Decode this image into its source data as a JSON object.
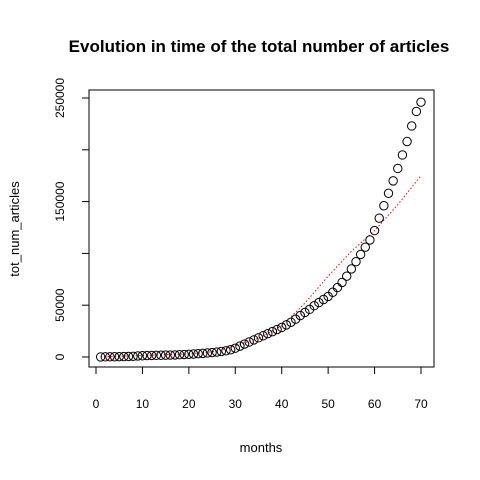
{
  "chart_data": {
    "type": "scatter",
    "title": "Evolution in time of the total number of articles",
    "xlabel": "months",
    "ylabel": "tot_num_articles",
    "xlim": [
      0,
      70
    ],
    "ylim": [
      0,
      250000
    ],
    "x_ticks": [
      0,
      10,
      20,
      30,
      40,
      50,
      60,
      70
    ],
    "y_ticks": [
      0,
      50000,
      150000,
      250000
    ],
    "grid": false,
    "series": [
      {
        "marker": "open-circle",
        "color": "#000000",
        "x": [
          1,
          2,
          3,
          4,
          5,
          6,
          7,
          8,
          9,
          10,
          11,
          12,
          13,
          14,
          15,
          16,
          17,
          18,
          19,
          20,
          21,
          22,
          23,
          24,
          25,
          26,
          27,
          28,
          29,
          30,
          31,
          32,
          33,
          34,
          35,
          36,
          37,
          38,
          39,
          40,
          41,
          42,
          43,
          44,
          45,
          46,
          47,
          48,
          49,
          50,
          51,
          52,
          53,
          54,
          55,
          56,
          57,
          58,
          59,
          60,
          61,
          62,
          63,
          64,
          65,
          66,
          67,
          68,
          69,
          70
        ],
        "y": [
          100,
          150,
          200,
          250,
          300,
          400,
          500,
          700,
          1000,
          1200,
          1400,
          1500,
          1600,
          1700,
          1800,
          1900,
          2000,
          2200,
          2400,
          2600,
          2900,
          3200,
          3500,
          3900,
          4300,
          4800,
          5400,
          6000,
          7000,
          8500,
          10500,
          12500,
          14500,
          16500,
          18500,
          20500,
          22500,
          24500,
          26500,
          28500,
          31000,
          33500,
          36500,
          40000,
          43000,
          46000,
          49500,
          52500,
          55500,
          58500,
          62500,
          67000,
          72000,
          78000,
          85000,
          92000,
          99000,
          106000,
          113000,
          122000,
          134000,
          146000,
          158000,
          170000,
          182000,
          195000,
          208000,
          223000,
          237000,
          246000
        ]
      },
      {
        "style": "dotted-line",
        "color": "#ff0000",
        "x": [
          1,
          10,
          20,
          25,
          28,
          30,
          35,
          40,
          45,
          50,
          55,
          60,
          65,
          70
        ],
        "y": [
          200,
          1500,
          3000,
          5000,
          8000,
          11000,
          18000,
          30000,
          52000,
          78000,
          102000,
          122000,
          147000,
          175000
        ]
      }
    ]
  }
}
